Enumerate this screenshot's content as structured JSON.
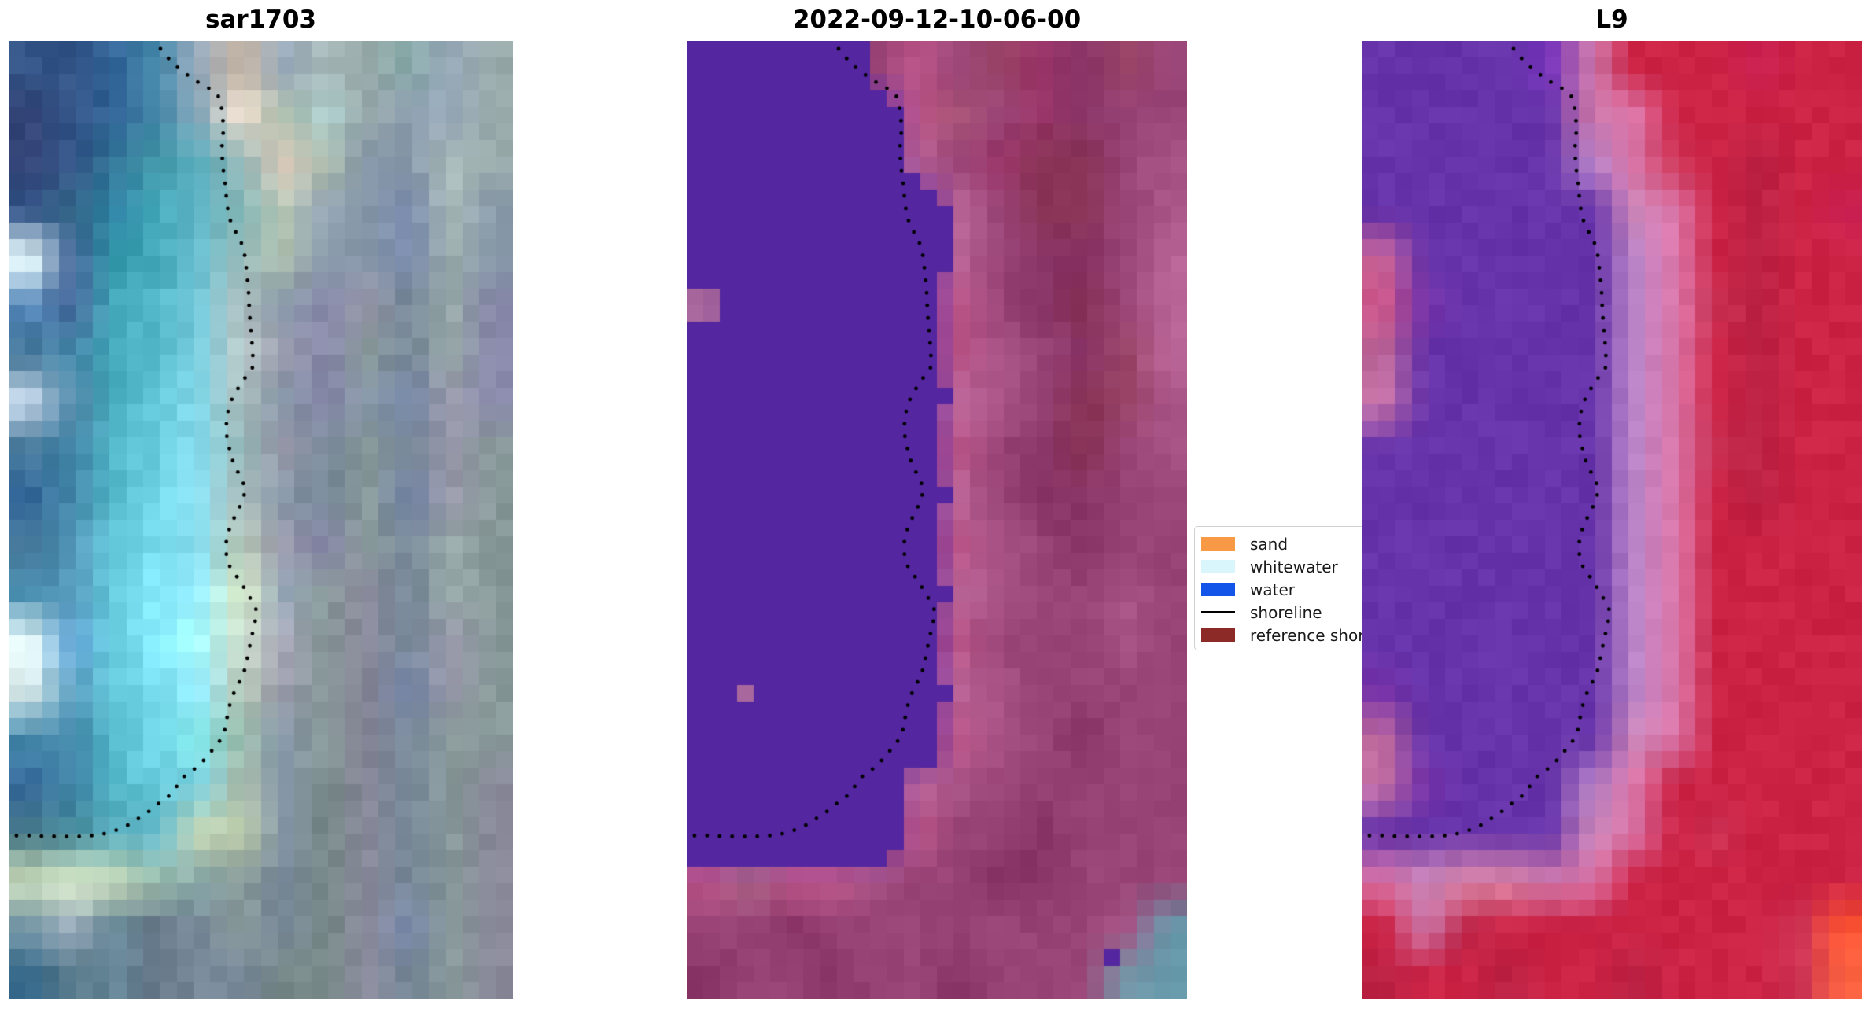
{
  "figure": {
    "background": "#ffffff"
  },
  "chart_data": [
    {
      "type": "heatmap",
      "title": "sar1703",
      "description": "pixelated satellite composite, teal/blue water left, gray-blue land right, dotted black shoreline",
      "grid_cols": 12,
      "grid_rows": 20,
      "rows": [
        "35835836948a9abcba9ababb9aa8aa9ab9aa",
        "34735836948a8abedcabaacc9aa89a9ab9aa",
        "34735837949a5ab9bbdcbaba89a89aabb9aa",
        "35836838a4ab6bc8bbbcb9ab89a78aabb89a",
        "eff46939a4ab6bc9bbaba89a89a78a9aa89a",
        "58b4694ab5bc7cdabb89a88a99a7899aa88a",
        "47948a4ab5bc7cdbcc99a88a8997899aa88a",
        "cde58a4ab6cd8deabb89a88a89a78a99a88a",
        "47948a5bc6cd8de9bb99a78989978999a899",
        "36948a5bc7de9efabb89a78989978a99a899",
        "47959b6cd7de8debcb99a88a8997899aa899",
        "48a59b6cd8ef9efdec9ab8998897899aa899",
        "eff6ad6cd8efaffcdcaab89988978999a899",
        "dee59b6cd7de9efbcb99a89988978a99a899",
        "48a48a5bc7de8ee9ba89a899889789899899",
        "36948a5bc6cd7cdaba89a788889789899889",
        "4784895ab6bccdbbca89a788889789899889",
        "cdbdeccdb9ba8aa899789788889789899889",
        "79a9ab68967878989978978888978a899889",
        "368578689678789789788788889789899889"
      ],
      "flat_mask": false,
      "jitter": 9,
      "seed": 11
    },
    {
      "type": "heatmap",
      "title": "2022-09-12-10-06-00",
      "description": "classified image, flat violet water mask left, mauve land right, dotted shoreline, teal patch bottom-right",
      "grid_cols": 12,
      "grid_rows": 20,
      "rows": [
        "52a52a52a52a947b58947946936836946947",
        "52a52a52a52a52ab58a57947936836947947",
        "52a52a52a52a52ab69947936835835947a58",
        "52a52a52a52a52a52ab69947835835947a58",
        "52a52a52a52a52a52ab69947836836947b69",
        "b7952a52a52a52a52ab58947836835947b69",
        "52a52a52a52a52a52ab58a58947836946b69",
        "52a52a52a52a52a52ab69a58947835946a58",
        "52a52a52a52a52a52ab58947836835947a58",
        "52a52a52a52a52a52ab69947836836947947",
        "52a52a52a52a52a52ab58a58947836947947",
        "52a52a52a52a52a52ab69a58947947a58947",
        "52a52a52a52a52a52ab58947947947a58947",
        "52ab7952a52a52a52ab69a58947947947947",
        "52a52a52a52a52a52ab58a58947836947947",
        "52a52a52a52a52ab69a58947947947947947",
        "52a52a52a52a52ab58947947836947947947",
        "b58a68b58b58a58947947836836947947947",
        "947947836947947947947947947947a5869a",
        "83694794783694794783694794794779a69a"
      ],
      "flat_mask": true,
      "mask_color": "#5426a0",
      "legend_labels": [
        "sand",
        "whitewater",
        "water",
        "shoreline",
        "reference shoreline"
      ],
      "jitter": 5,
      "seed": 23
    },
    {
      "type": "heatmap",
      "title": "L9",
      "description": "Landsat 9 false color, violet water left, crimson land right, pink transition band, orange patch bottom-right",
      "grid_cols": 12,
      "grid_rows": 20,
      "rows": [
        "63a63a63a63a73bc7ac24c24c24c25c24c24",
        "63a63a63a63a63ac7ad7ac24c24c24c24c24",
        "63a63a63a63a63ab8cd7ac35c24b24c24c24",
        "63a63a63a63a63a63ac8bd7ac24b24c24c25",
        "c6963a63a63a63a63ab8cd7ac24b24c24c24",
        "c5873a63a63a63a63ab8cd7ac35b24c24c24",
        "b6963a63a63a63a63ab8cd7ac24b24c24c24",
        "c7a63a63a63a63a63ab8cd7ac24b24c24c24",
        "63a63a63a63a63a63ab8cd7ac35b24c24c24",
        "63a63a63a63a63a63ab8cd7ac24b24c24c24",
        "63a63a63a63a63a63ab8cd7ac24c24c24c24",
        "63a63a63a63a63a63ab8cd7ac24c24c24c24",
        "63a63a63a63a63a63ab8cd7ac24c24c24c24",
        "73a63a63a63a63a63ab8cd7ac24c24c24c24",
        "b6963a63a63a63a63ac8bd7ac24c24c24c24",
        "c7a73a63a63a63ab8cd7ac24c24c24c24c24",
        "63a63a63a63a63ac8bd7ac24c35c24c24c24",
        "d7ac8bd8ad8ac7ad7ac24c24c24c24c24c24",
        "c24c7ab24c24c24c24c24c24c24c24c35f53",
        "b24c24c24b24c24c24b24c24c24c24c35f64"
      ],
      "flat_mask": false,
      "jitter": 6,
      "seed": 37
    }
  ],
  "shoreline": {
    "color": "#000000",
    "dot_radius": 2.4,
    "dot_spacing": 16,
    "points_rel": [
      [
        193,
        10
      ],
      [
        203,
        22
      ],
      [
        214,
        33
      ],
      [
        228,
        44
      ],
      [
        243,
        54
      ],
      [
        258,
        62
      ],
      [
        268,
        72
      ],
      [
        272,
        92
      ],
      [
        273,
        114
      ],
      [
        271,
        136
      ],
      [
        272,
        158
      ],
      [
        275,
        180
      ],
      [
        277,
        202
      ],
      [
        280,
        224
      ],
      [
        287,
        240
      ],
      [
        295,
        254
      ],
      [
        300,
        272
      ],
      [
        303,
        296
      ],
      [
        305,
        320
      ],
      [
        306,
        344
      ],
      [
        308,
        368
      ],
      [
        310,
        392
      ],
      [
        311,
        414
      ],
      [
        298,
        432
      ],
      [
        285,
        452
      ],
      [
        278,
        474
      ],
      [
        276,
        496
      ],
      [
        280,
        516
      ],
      [
        284,
        532
      ],
      [
        293,
        552
      ],
      [
        302,
        570
      ],
      [
        294,
        592
      ],
      [
        284,
        612
      ],
      [
        277,
        630
      ],
      [
        276,
        650
      ],
      [
        281,
        668
      ],
      [
        292,
        684
      ],
      [
        301,
        698
      ],
      [
        309,
        712
      ],
      [
        316,
        726
      ],
      [
        312,
        744
      ],
      [
        308,
        762
      ],
      [
        304,
        782
      ],
      [
        300,
        800
      ],
      [
        293,
        816
      ],
      [
        285,
        832
      ],
      [
        280,
        848
      ],
      [
        277,
        864
      ],
      [
        274,
        880
      ],
      [
        266,
        894
      ],
      [
        257,
        904
      ],
      [
        247,
        916
      ],
      [
        236,
        926
      ],
      [
        222,
        936
      ],
      [
        212,
        950
      ],
      [
        202,
        962
      ],
      [
        190,
        970
      ],
      [
        178,
        980
      ],
      [
        166,
        988
      ],
      [
        154,
        996
      ],
      [
        141,
        1002
      ],
      [
        127,
        1007
      ],
      [
        112,
        1010
      ],
      [
        96,
        1011
      ],
      [
        80,
        1012
      ],
      [
        64,
        1011
      ],
      [
        48,
        1012
      ],
      [
        32,
        1010
      ],
      [
        16,
        1011
      ],
      [
        4,
        1010
      ]
    ]
  },
  "legend": {
    "items": [
      {
        "label": "sand",
        "kind": "patch",
        "color": "#f89a45"
      },
      {
        "label": "whitewater",
        "kind": "patch",
        "color": "#d8f6fc"
      },
      {
        "label": "water",
        "kind": "patch",
        "color": "#1355e9"
      },
      {
        "label": "shoreline",
        "kind": "line",
        "color": "#000000"
      },
      {
        "label": "reference shoreline",
        "kind": "patch",
        "color": "#8b2a26"
      }
    ]
  }
}
